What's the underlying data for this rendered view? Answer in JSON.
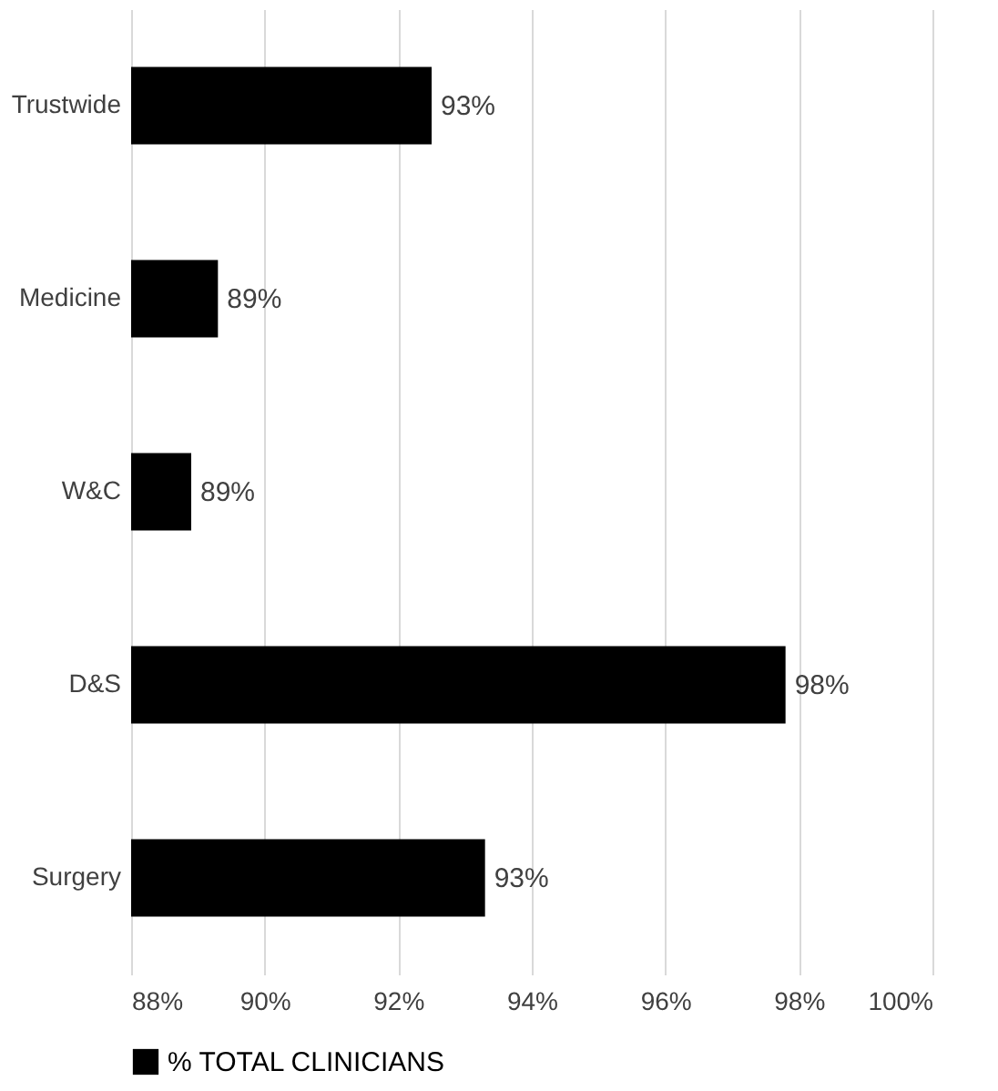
{
  "chart_data": {
    "type": "bar",
    "orientation": "horizontal",
    "categories": [
      "Trustwide",
      "Medicine",
      "W&C",
      "D&S",
      "Surgery"
    ],
    "series": [
      {
        "name": "% TOTAL CLINICIANS",
        "color": "#000000",
        "values": [
          92.5,
          89.3,
          88.9,
          97.8,
          93.3
        ],
        "value_labels": [
          "93%",
          "89%",
          "89%",
          "98%",
          "93%"
        ]
      }
    ],
    "xlim": [
      88,
      100
    ],
    "xticks": [
      {
        "value": 88,
        "label": "88%"
      },
      {
        "value": 90,
        "label": "90%"
      },
      {
        "value": 92,
        "label": "92%"
      },
      {
        "value": 94,
        "label": "94%"
      },
      {
        "value": 96,
        "label": "96%"
      },
      {
        "value": 98,
        "label": "98%"
      },
      {
        "value": 100,
        "label": "100%"
      }
    ],
    "grid": "x",
    "legend": "bottom"
  }
}
